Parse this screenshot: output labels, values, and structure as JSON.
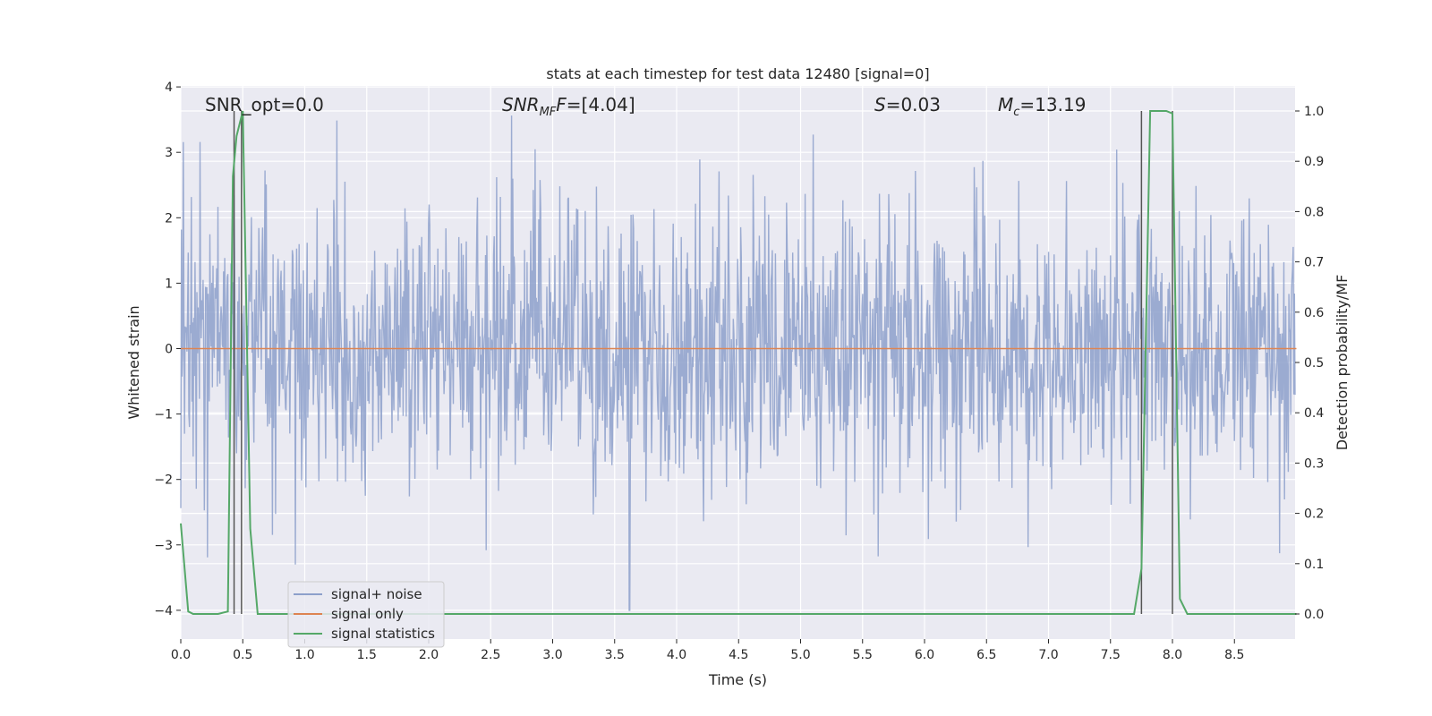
{
  "chart_data": {
    "type": "line",
    "title": "stats at each timestep for test data 12480 [signal=0]",
    "xlabel": "Time (s)",
    "ylabel": "Whitened strain",
    "ylabel_right": "Detection probability/MF",
    "xlim": [
      0.0,
      9.0
    ],
    "ylim": [
      -4.4,
      4.0
    ],
    "ylim_right": [
      -0.05,
      1.045
    ],
    "x_ticks": [
      "0.0",
      "0.5",
      "1.0",
      "1.5",
      "2.0",
      "2.5",
      "3.0",
      "3.5",
      "4.0",
      "4.5",
      "5.0",
      "5.5",
      "6.0",
      "6.5",
      "7.0",
      "7.5",
      "8.0",
      "8.5"
    ],
    "y_ticks": [
      "4",
      "3",
      "2",
      "1",
      "0",
      "−1",
      "−2",
      "−3",
      "−4"
    ],
    "y_ticks_right": [
      "1.0",
      "0.9",
      "0.8",
      "0.7",
      "0.6",
      "0.5",
      "0.4",
      "0.3",
      "0.2",
      "0.1",
      "0.0"
    ],
    "grid": true,
    "legend_position": "lower-left",
    "annotations": {
      "snr_opt": "SNR_opt=0.0",
      "snr_mf_main": "SNR",
      "snr_mf_sub": "MF",
      "snr_mf_value": "=[4.04]",
      "s_main": "S",
      "s_value": "=0.03",
      "mc_main": "M",
      "mc_sub": "c",
      "mc_value": "=13.19"
    },
    "series": [
      {
        "name": "signal+ noise",
        "color": "#8da0cb",
        "axis": "left",
        "description_values": "whitened noise band, approx. symmetric around 0, typical range -1.7 to 1.7, peaks up to 3.6 and down to -4.0 (t=3.62)",
        "typical_amplitude": 1.2,
        "max": 3.65,
        "min": -4.0
      },
      {
        "name": "signal only",
        "color": "#dd8452",
        "axis": "left",
        "x": [
          0.0,
          9.0
        ],
        "y": [
          0.0,
          0.0
        ]
      },
      {
        "name": "signal statistics",
        "color": "#55a868",
        "axis": "right",
        "x": [
          0.0,
          0.06,
          0.1,
          0.2,
          0.3,
          0.38,
          0.42,
          0.45,
          0.5,
          0.56,
          0.62,
          0.7,
          1.0,
          2.0,
          3.0,
          4.0,
          5.0,
          6.0,
          7.0,
          7.5,
          7.69,
          7.75,
          7.82,
          7.9,
          7.95,
          8.0,
          8.06,
          8.12,
          8.5,
          9.0
        ],
        "y": [
          0.18,
          0.005,
          0.0,
          0.0,
          0.0,
          0.005,
          0.87,
          0.95,
          1.0,
          0.17,
          0.0,
          0.0,
          0.0,
          0.0,
          0.0,
          0.0,
          0.0,
          0.0,
          0.0,
          0.0,
          0.0,
          0.09,
          1.0,
          1.0,
          1.0,
          0.995,
          0.03,
          0.0,
          0.0,
          0.0
        ]
      }
    ],
    "vertical_markers": [
      0.43,
      0.49,
      7.75,
      8.0
    ]
  }
}
